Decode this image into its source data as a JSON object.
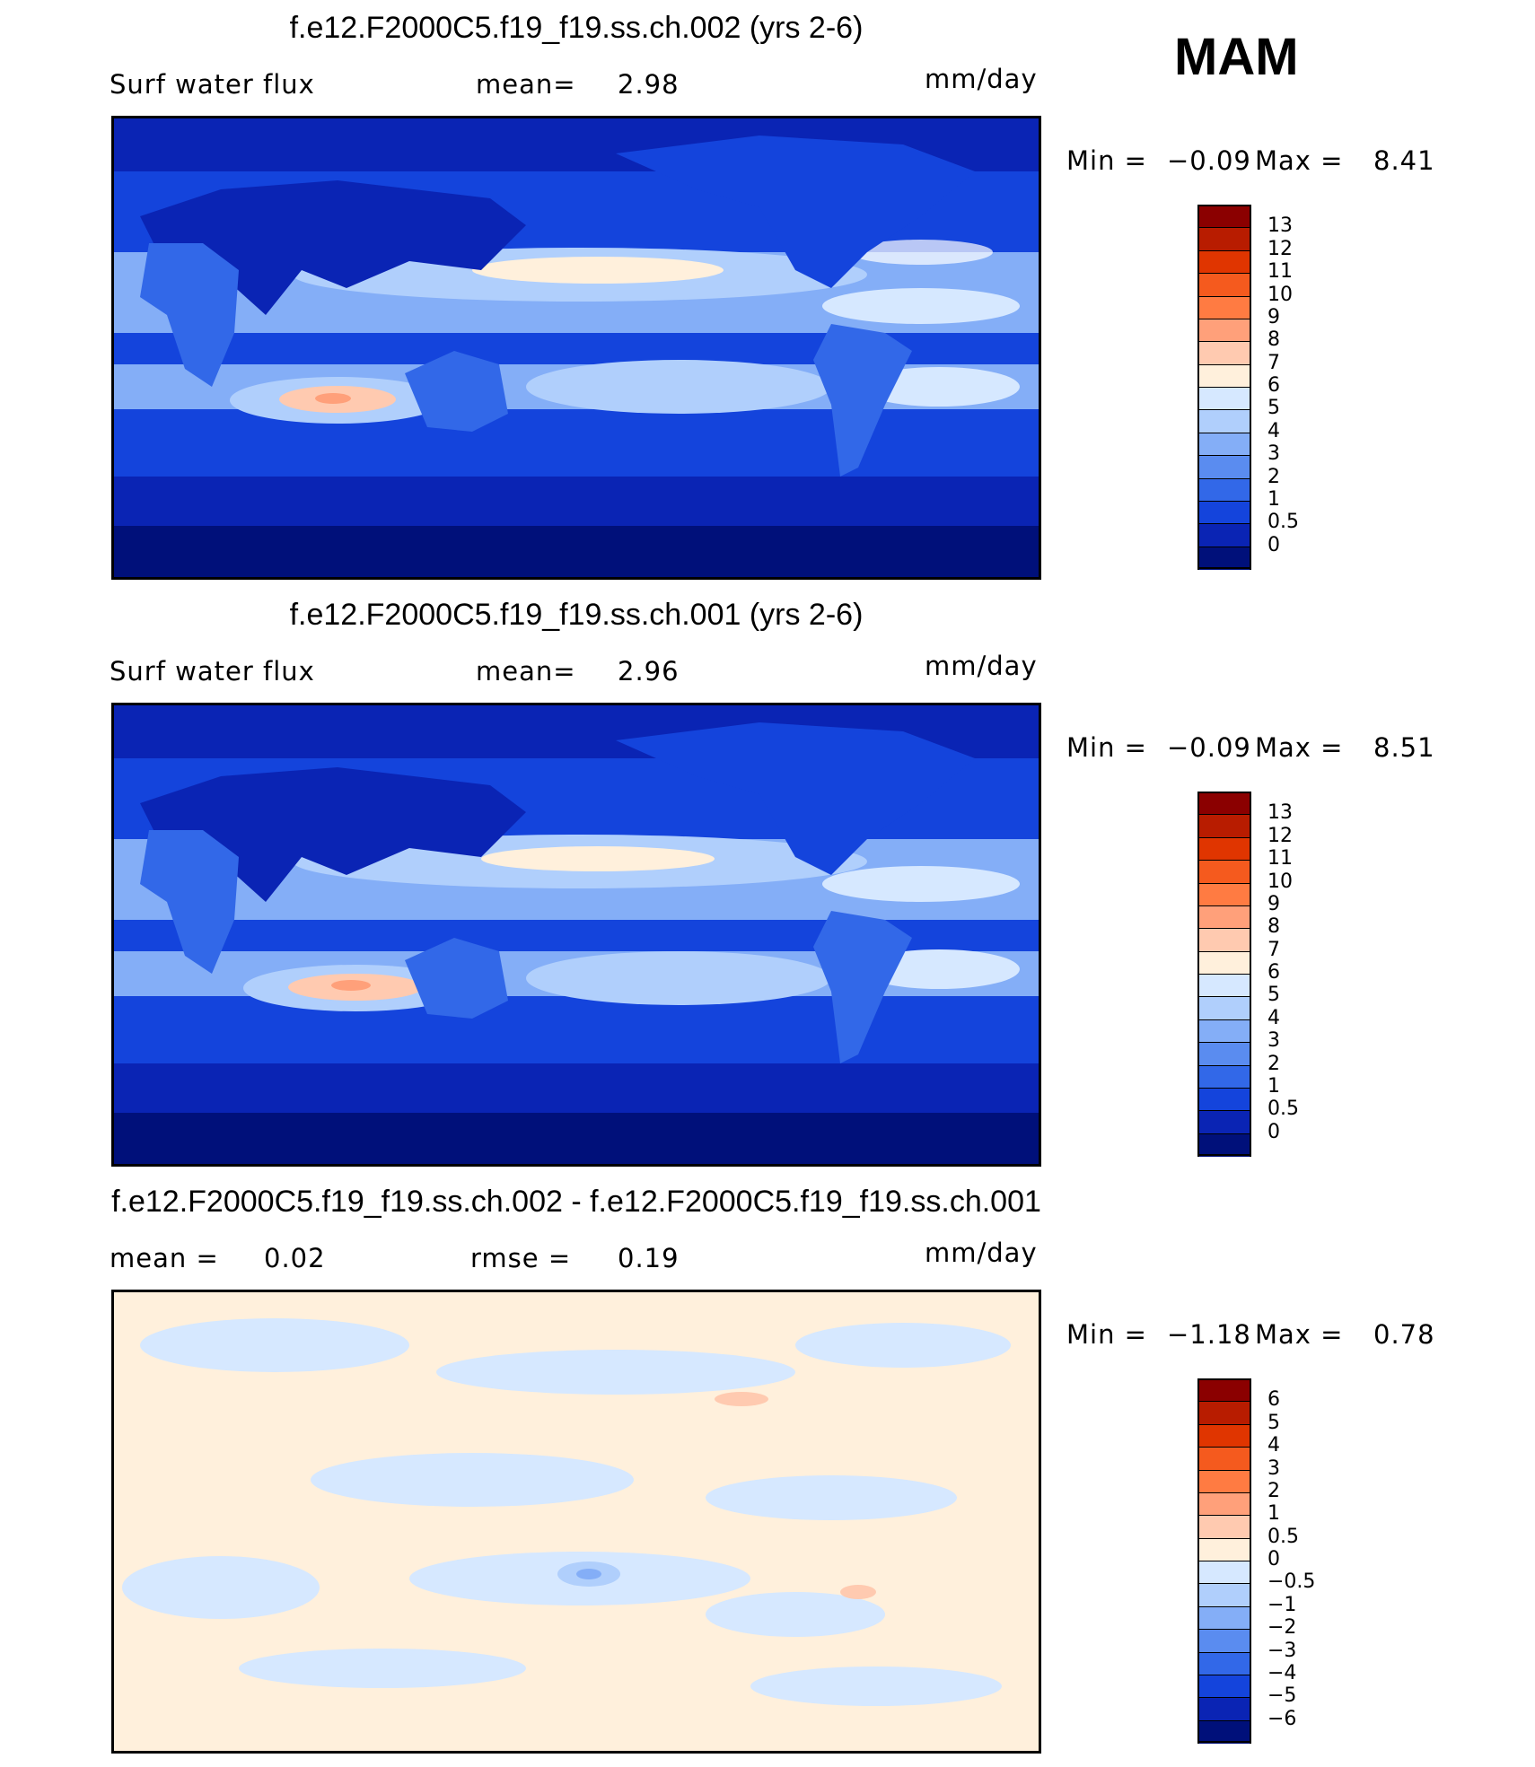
{
  "season": "MAM",
  "panels": [
    {
      "title": "f.e12.F2000C5.f19_f19.ss.ch.002 (yrs 2-6)",
      "left_label": "Surf water flux",
      "mid_label": "mean=",
      "mid_value": "2.98",
      "units": "mm/day",
      "min_label": "Min =",
      "min_value": "−0.09",
      "max_label": "Max =",
      "max_value": "8.41",
      "colorbar": {
        "labels": [
          "13",
          "12",
          "11",
          "10",
          "9",
          "8",
          "7",
          "6",
          "5",
          "4",
          "3",
          "2",
          "1",
          "0.5",
          "0"
        ],
        "colors": [
          "#8b0000",
          "#b81c00",
          "#e03500",
          "#f55a1e",
          "#ff7b42",
          "#ffa07a",
          "#ffcab0",
          "#fff0dc",
          "#d6e8ff",
          "#b0cffc",
          "#84aef7",
          "#5a8cf0",
          "#3268e8",
          "#1444dc",
          "#0a24b4",
          "#00107a"
        ]
      }
    },
    {
      "title": "f.e12.F2000C5.f19_f19.ss.ch.001 (yrs 2-6)",
      "left_label": "Surf water flux",
      "mid_label": "mean=",
      "mid_value": "2.96",
      "units": "mm/day",
      "min_label": "Min =",
      "min_value": "−0.09",
      "max_label": "Max =",
      "max_value": "8.51",
      "colorbar": {
        "labels": [
          "13",
          "12",
          "11",
          "10",
          "9",
          "8",
          "7",
          "6",
          "5",
          "4",
          "3",
          "2",
          "1",
          "0.5",
          "0"
        ],
        "colors": [
          "#8b0000",
          "#b81c00",
          "#e03500",
          "#f55a1e",
          "#ff7b42",
          "#ffa07a",
          "#ffcab0",
          "#fff0dc",
          "#d6e8ff",
          "#b0cffc",
          "#84aef7",
          "#5a8cf0",
          "#3268e8",
          "#1444dc",
          "#0a24b4",
          "#00107a"
        ]
      }
    },
    {
      "title": "f.e12.F2000C5.f19_f19.ss.ch.002 - f.e12.F2000C5.f19_f19.ss.ch.001",
      "left_label": "mean =",
      "left_value": "0.02",
      "mid_label": "rmse =",
      "mid_value": "0.19",
      "units": "mm/day",
      "min_label": "Min =",
      "min_value": "−1.18",
      "max_label": "Max =",
      "max_value": "0.78",
      "colorbar": {
        "labels": [
          "6",
          "5",
          "4",
          "3",
          "2",
          "1",
          "0.5",
          "0",
          "−0.5",
          "−1",
          "−2",
          "−3",
          "−4",
          "−5",
          "−6"
        ],
        "colors": [
          "#8b0000",
          "#b81c00",
          "#e03500",
          "#f55a1e",
          "#ff7b42",
          "#ffa07a",
          "#ffcab0",
          "#fff0dc",
          "#d6e8ff",
          "#b0cffc",
          "#84aef7",
          "#5a8cf0",
          "#3268e8",
          "#1444dc",
          "#0a24b4",
          "#00107a"
        ]
      }
    }
  ]
}
